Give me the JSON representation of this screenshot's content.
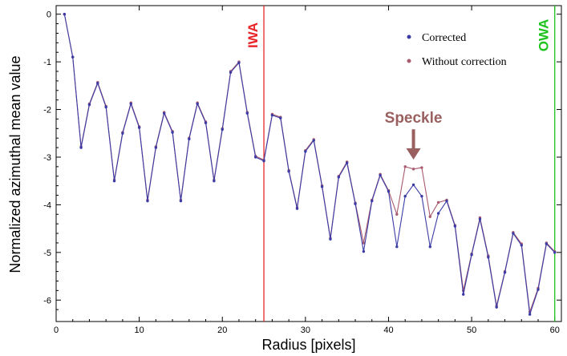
{
  "chart_data": {
    "type": "line",
    "xlabel": "Radius [pixels]",
    "ylabel": "Normalized azimuthal mean value",
    "xlim": [
      0,
      60.8
    ],
    "ylim": [
      -6.45,
      0.18
    ],
    "x_ticks": [
      0,
      10,
      20,
      30,
      40,
      50,
      60
    ],
    "y_ticks": [
      0,
      -1,
      -2,
      -3,
      -4,
      -5,
      -6
    ],
    "grid": false,
    "legend_position": "top-right",
    "series": [
      {
        "name": "Corrected",
        "color": "#3b3ba6",
        "x": [
          1,
          2,
          3,
          4,
          5,
          6,
          7,
          8,
          9,
          10,
          11,
          12,
          13,
          14,
          15,
          16,
          17,
          18,
          19,
          20,
          21,
          22,
          23,
          24,
          25,
          26,
          27,
          28,
          29,
          30,
          31,
          32,
          33,
          34,
          35,
          36,
          37,
          38,
          39,
          40,
          41,
          42,
          43,
          44,
          45,
          46,
          47,
          48,
          49,
          50,
          51,
          52,
          53,
          54,
          55,
          56,
          57,
          58,
          59,
          60
        ],
        "y": [
          0,
          -0.9,
          -2.8,
          -1.9,
          -1.45,
          -1.95,
          -3.5,
          -2.5,
          -1.88,
          -2.38,
          -3.92,
          -2.8,
          -2.08,
          -2.48,
          -3.92,
          -2.62,
          -1.88,
          -2.28,
          -3.5,
          -2.42,
          -1.22,
          -1.02,
          -2.08,
          -3.0,
          -3.08,
          -2.12,
          -2.18,
          -3.3,
          -4.08,
          -2.88,
          -2.65,
          -3.62,
          -4.72,
          -3.42,
          -3.12,
          -3.98,
          -4.98,
          -3.92,
          -3.38,
          -3.72,
          -4.88,
          -3.82,
          -3.58,
          -3.82,
          -4.88,
          -4.18,
          -3.92,
          -4.45,
          -5.88,
          -5.05,
          -4.3,
          -5.1,
          -6.15,
          -5.42,
          -4.6,
          -4.85,
          -6.3,
          -5.78,
          -4.82,
          -5.0
        ]
      },
      {
        "name": "Without correction",
        "color": "#a85a6e",
        "x": [
          1,
          2,
          3,
          4,
          5,
          6,
          7,
          8,
          9,
          10,
          11,
          12,
          13,
          14,
          15,
          16,
          17,
          18,
          19,
          20,
          21,
          22,
          23,
          24,
          25,
          26,
          27,
          28,
          29,
          30,
          31,
          32,
          33,
          34,
          35,
          36,
          37,
          38,
          39,
          40,
          41,
          42,
          43,
          44,
          45,
          46,
          47,
          48,
          49,
          50,
          51,
          52,
          53,
          54,
          55,
          56,
          57,
          58,
          59,
          60
        ],
        "y": [
          0,
          -0.9,
          -2.78,
          -1.88,
          -1.43,
          -1.93,
          -3.48,
          -2.48,
          -1.86,
          -2.36,
          -3.9,
          -2.78,
          -2.06,
          -2.46,
          -3.9,
          -2.6,
          -1.86,
          -2.26,
          -3.48,
          -2.4,
          -1.2,
          -1.0,
          -2.06,
          -2.98,
          -3.06,
          -2.1,
          -2.16,
          -3.28,
          -4.06,
          -2.86,
          -2.63,
          -3.6,
          -4.7,
          -3.4,
          -3.1,
          -3.96,
          -4.8,
          -3.9,
          -3.36,
          -3.7,
          -4.2,
          -3.2,
          -3.25,
          -3.22,
          -4.25,
          -3.95,
          -3.9,
          -4.43,
          -5.8,
          -5.03,
          -4.27,
          -5.07,
          -6.12,
          -5.4,
          -4.58,
          -4.82,
          -6.25,
          -5.75,
          -4.8,
          -4.98
        ]
      }
    ],
    "vlines": [
      {
        "label": "IWA",
        "x": 25,
        "color": "#e8262a"
      },
      {
        "label": "OWA",
        "x": 60,
        "color": "#1ec31e"
      }
    ],
    "annotation": {
      "text": "Speckle",
      "x": 43,
      "y": -2.55,
      "arrow_to_y": -3.05,
      "color": "#9a5f5f"
    }
  }
}
